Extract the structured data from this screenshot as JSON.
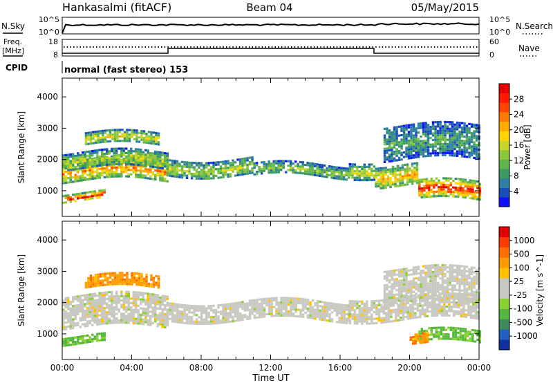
{
  "header": {
    "station": "Hankasalmi (fitACF)",
    "beam": "Beam 04",
    "date": "05/May/2015"
  },
  "top_panels": {
    "nsky_label": "N.Sky",
    "nsky_ticks": [
      "10^5",
      "10^0"
    ],
    "nsearch_label": "N.Search",
    "nsearch_ticks": [
      "10^5",
      "10^0"
    ],
    "freq_label_1": "Freq.",
    "freq_label_2": "[MHz]",
    "freq_ticks": [
      "18",
      "8"
    ],
    "nave_label": "Nave",
    "nave_ticks": [
      "60",
      "0"
    ],
    "cpid_label": "CPID",
    "cpid_text": "normal (fast stereo) 153"
  },
  "chart_data": [
    {
      "type": "heatmap",
      "name": "power",
      "ylabel": "Slant Range [km]",
      "xlabel": "",
      "x_range_hours": [
        0,
        24
      ],
      "ylim_km": [
        180,
        4600
      ],
      "y_ticks": [
        1000,
        2000,
        3000,
        4000
      ],
      "colorbar": {
        "label": "Power [dB]",
        "ticks": [
          "4",
          "8",
          "12",
          "16",
          "20",
          "24",
          "28"
        ],
        "colors": [
          "#1010ff",
          "#1850b8",
          "#2e7fa0",
          "#3c9a66",
          "#5fb44a",
          "#8cc83a",
          "#c8d428",
          "#ffd400",
          "#ffaa00",
          "#ff7a00",
          "#ff4400",
          "#ff1a00",
          "#e60000"
        ]
      },
      "bands": [
        {
          "t0": 0.0,
          "t1": 6.0,
          "lo": 1300,
          "hi": 2000,
          "level": 0.7
        },
        {
          "t0": 0.0,
          "t1": 6.0,
          "lo": 1700,
          "hi": 2250,
          "level": 0.5
        },
        {
          "t0": 0.0,
          "t1": 2.5,
          "lo": 700,
          "hi": 950,
          "level": 0.95
        },
        {
          "t0": 1.3,
          "t1": 5.5,
          "lo": 2450,
          "hi": 2850,
          "level": 0.55
        },
        {
          "t0": 6.0,
          "t1": 11.0,
          "lo": 1500,
          "hi": 2050,
          "level": 0.45
        },
        {
          "t0": 11.0,
          "t1": 16.5,
          "lo": 1450,
          "hi": 1850,
          "level": 0.4
        },
        {
          "t0": 16.5,
          "t1": 18.0,
          "lo": 1450,
          "hi": 2000,
          "level": 0.5
        },
        {
          "t0": 18.0,
          "t1": 20.5,
          "lo": 1150,
          "hi": 1850,
          "level": 0.65
        },
        {
          "t0": 18.5,
          "t1": 24.0,
          "lo": 2000,
          "hi": 3100,
          "level": 0.3
        },
        {
          "t0": 20.5,
          "t1": 24.0,
          "lo": 700,
          "hi": 1300,
          "level": 0.9
        }
      ]
    },
    {
      "type": "heatmap",
      "name": "velocity",
      "ylabel": "Slant Range [km]",
      "xlabel": "Time UT",
      "x_range_hours": [
        0,
        24
      ],
      "x_ticks": [
        "00:00",
        "04:00",
        "08:00",
        "12:00",
        "16:00",
        "20:00",
        "00:00"
      ],
      "ylim_km": [
        180,
        4600
      ],
      "y_ticks": [
        1000,
        2000,
        3000,
        4000
      ],
      "colorbar": {
        "label": "Velocity [m s^-1]",
        "ticks": [
          "1000",
          "500",
          "100",
          "25",
          "-25",
          "-100",
          "-500",
          "-1000"
        ],
        "colors": [
          "#1030a0",
          "#2060c0",
          "#3c8a58",
          "#54b840",
          "#8ad030",
          "#c8c8c0",
          "#c8c8c0",
          "#ffc000",
          "#ff9a00",
          "#ff7000",
          "#ff3c00",
          "#e00000"
        ]
      },
      "bands": [
        {
          "t0": 0.0,
          "t1": 6.0,
          "lo": 1200,
          "hi": 2250,
          "v": "ground"
        },
        {
          "t0": 0.0,
          "t1": 2.5,
          "lo": 700,
          "hi": 950,
          "v": "green"
        },
        {
          "t0": 1.3,
          "t1": 5.5,
          "lo": 2450,
          "hi": 2850,
          "v": "orange"
        },
        {
          "t0": 6.0,
          "t1": 16.5,
          "lo": 1450,
          "hi": 2050,
          "v": "ground"
        },
        {
          "t0": 16.5,
          "t1": 24.0,
          "lo": 1450,
          "hi": 2200,
          "v": "ground"
        },
        {
          "t0": 18.5,
          "t1": 24.0,
          "lo": 2000,
          "hi": 3100,
          "v": "ground"
        },
        {
          "t0": 20.5,
          "t1": 24.0,
          "lo": 700,
          "hi": 1100,
          "v": "green"
        },
        {
          "t0": 20.0,
          "t1": 21.0,
          "lo": 650,
          "hi": 950,
          "v": "orange"
        }
      ]
    }
  ]
}
